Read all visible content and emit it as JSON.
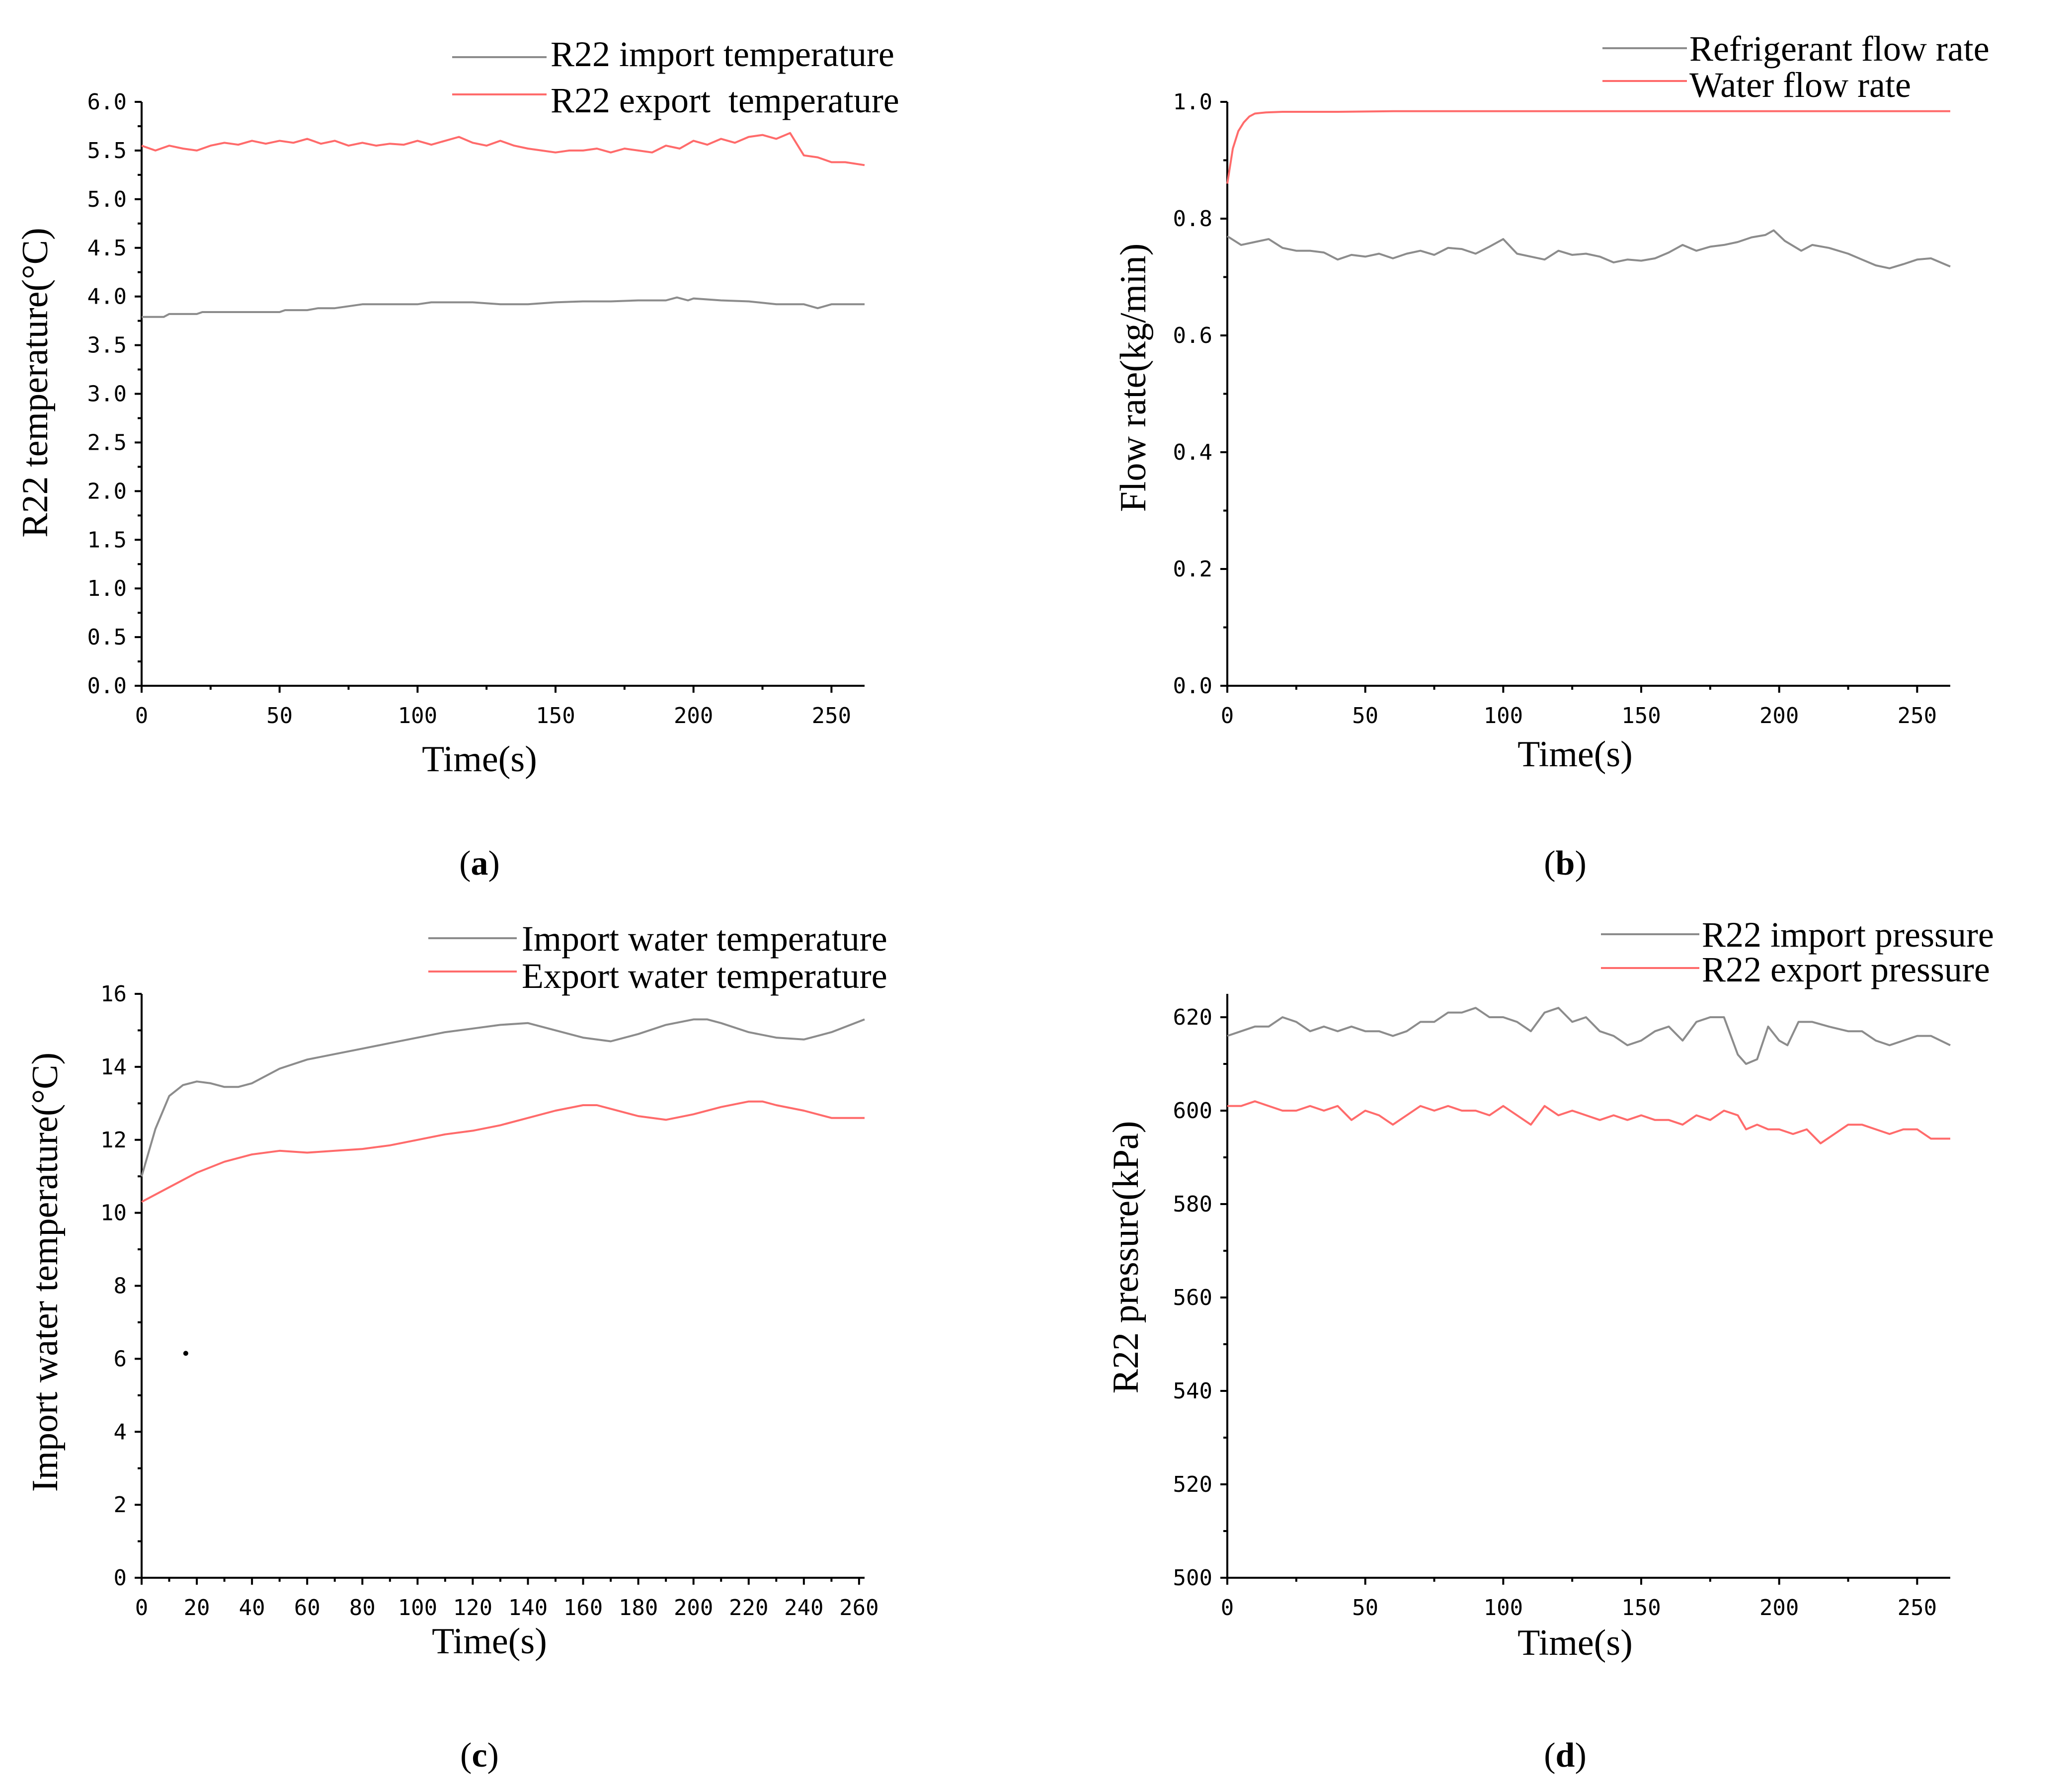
{
  "chart_data": [
    {
      "panel": "a",
      "type": "line",
      "caption": {
        "open": "(",
        "letter": "a",
        "close": ")"
      },
      "xlabel": "Time(s)",
      "ylabel": "R22 temperature(°C)",
      "xlim": [
        0,
        262
      ],
      "ylim": [
        0,
        6
      ],
      "xticks": [
        0,
        50,
        100,
        150,
        200,
        250
      ],
      "xtick_labels": [
        "0",
        "50",
        "100",
        "150",
        "200",
        "250"
      ],
      "yticks": [
        0,
        0.5,
        1,
        1.5,
        2,
        2.5,
        3,
        3.5,
        4,
        4.5,
        5,
        5.5,
        6
      ],
      "ytick_labels": [
        "0.0",
        "0.5",
        "1.0",
        "1.5",
        "2.0",
        "2.5",
        "3.0",
        "3.5",
        "4.0",
        "4.5",
        "5.0",
        "5.5",
        "6.0"
      ],
      "legend_position": "top-right",
      "series": [
        {
          "name": "R22 import temperature",
          "color": "#8c8c8c",
          "x": [
            0,
            8,
            10,
            20,
            22,
            30,
            40,
            50,
            52,
            60,
            64,
            70,
            80,
            90,
            100,
            105,
            110,
            120,
            130,
            140,
            150,
            160,
            170,
            180,
            190,
            194,
            198,
            200,
            210,
            220,
            230,
            240,
            245,
            250,
            262
          ],
          "y": [
            3.79,
            3.79,
            3.82,
            3.82,
            3.84,
            3.84,
            3.84,
            3.84,
            3.86,
            3.86,
            3.88,
            3.88,
            3.92,
            3.92,
            3.92,
            3.94,
            3.94,
            3.94,
            3.92,
            3.92,
            3.94,
            3.95,
            3.95,
            3.96,
            3.96,
            3.99,
            3.96,
            3.98,
            3.96,
            3.95,
            3.92,
            3.92,
            3.88,
            3.92,
            3.92
          ]
        },
        {
          "name": "R22 export  temperature",
          "color": "#ff6b6b",
          "x": [
            0,
            5,
            10,
            15,
            20,
            25,
            30,
            35,
            40,
            45,
            50,
            55,
            60,
            65,
            70,
            75,
            80,
            85,
            90,
            95,
            100,
            105,
            110,
            115,
            120,
            125,
            130,
            135,
            140,
            145,
            150,
            155,
            160,
            165,
            170,
            175,
            180,
            185,
            190,
            195,
            200,
            205,
            210,
            215,
            220,
            225,
            230,
            235,
            240,
            245,
            250,
            255,
            262
          ],
          "y": [
            5.55,
            5.5,
            5.55,
            5.52,
            5.5,
            5.55,
            5.58,
            5.56,
            5.6,
            5.57,
            5.6,
            5.58,
            5.62,
            5.57,
            5.6,
            5.55,
            5.58,
            5.55,
            5.57,
            5.56,
            5.6,
            5.56,
            5.6,
            5.64,
            5.58,
            5.55,
            5.6,
            5.55,
            5.52,
            5.5,
            5.48,
            5.5,
            5.5,
            5.52,
            5.48,
            5.52,
            5.5,
            5.48,
            5.55,
            5.52,
            5.6,
            5.56,
            5.62,
            5.58,
            5.64,
            5.66,
            5.62,
            5.68,
            5.45,
            5.43,
            5.38,
            5.38,
            5.35
          ]
        }
      ]
    },
    {
      "panel": "b",
      "type": "line",
      "caption": {
        "open": "(",
        "letter": "b",
        "close": ")"
      },
      "xlabel": "Time(s)",
      "ylabel": "Flow rate(kg/min)",
      "xlim": [
        0,
        262
      ],
      "ylim": [
        0,
        1
      ],
      "xticks": [
        0,
        50,
        100,
        150,
        200,
        250
      ],
      "xtick_labels": [
        "0",
        "50",
        "100",
        "150",
        "200",
        "250"
      ],
      "yticks": [
        0,
        0.2,
        0.4,
        0.6,
        0.8,
        1.0
      ],
      "ytick_labels": [
        "0.0",
        "0.2",
        "0.4",
        "0.6",
        "0.8",
        "1.0"
      ],
      "legend_position": "top-right",
      "series": [
        {
          "name": "Refrigerant flow rate",
          "color": "#8c8c8c",
          "x": [
            0,
            5,
            10,
            15,
            20,
            25,
            30,
            35,
            40,
            45,
            50,
            55,
            60,
            65,
            70,
            75,
            80,
            85,
            90,
            95,
            100,
            105,
            110,
            115,
            120,
            125,
            130,
            135,
            140,
            145,
            150,
            155,
            160,
            165,
            170,
            175,
            180,
            185,
            190,
            195,
            198,
            202,
            208,
            212,
            218,
            225,
            230,
            235,
            240,
            245,
            250,
            255,
            262
          ],
          "y": [
            0.77,
            0.755,
            0.76,
            0.765,
            0.75,
            0.745,
            0.745,
            0.742,
            0.73,
            0.738,
            0.735,
            0.74,
            0.732,
            0.74,
            0.745,
            0.738,
            0.75,
            0.748,
            0.74,
            0.752,
            0.765,
            0.74,
            0.735,
            0.73,
            0.745,
            0.738,
            0.74,
            0.735,
            0.725,
            0.73,
            0.728,
            0.732,
            0.742,
            0.755,
            0.745,
            0.752,
            0.755,
            0.76,
            0.768,
            0.772,
            0.78,
            0.762,
            0.745,
            0.755,
            0.75,
            0.74,
            0.73,
            0.72,
            0.715,
            0.722,
            0.73,
            0.732,
            0.718
          ]
        },
        {
          "name": "Water flow rate",
          "color": "#ff6b6b",
          "x": [
            0,
            2,
            4,
            6,
            8,
            10,
            14,
            20,
            40,
            60,
            80,
            100,
            120,
            140,
            160,
            180,
            200,
            220,
            240,
            262
          ],
          "y": [
            0.86,
            0.92,
            0.95,
            0.965,
            0.975,
            0.98,
            0.982,
            0.983,
            0.983,
            0.984,
            0.984,
            0.984,
            0.984,
            0.984,
            0.984,
            0.984,
            0.984,
            0.984,
            0.984,
            0.984
          ]
        }
      ]
    },
    {
      "panel": "c",
      "type": "line",
      "caption": {
        "open": "(",
        "letter": "c",
        "close": ")"
      },
      "xlabel": "Time(s)",
      "ylabel": "Import water temperature(°C)",
      "xlim": [
        0,
        262
      ],
      "ylim": [
        0,
        16
      ],
      "xticks": [
        0,
        20,
        40,
        60,
        80,
        100,
        120,
        140,
        160,
        180,
        200,
        220,
        240,
        260
      ],
      "xtick_labels": [
        "0",
        "20",
        "40",
        "60",
        "80",
        "100",
        "120",
        "140",
        "160",
        "180",
        "200",
        "220",
        "240",
        "260"
      ],
      "yticks": [
        0,
        2,
        4,
        6,
        8,
        10,
        12,
        14,
        16
      ],
      "ytick_labels": [
        "0",
        "2",
        "4",
        "6",
        "8",
        "10",
        "12",
        "14",
        "16"
      ],
      "legend_position": "top-right",
      "series": [
        {
          "name": "Import water temperature",
          "color": "#8c8c8c",
          "x": [
            0,
            5,
            10,
            15,
            20,
            25,
            30,
            35,
            40,
            50,
            60,
            70,
            80,
            90,
            100,
            110,
            120,
            130,
            140,
            150,
            160,
            170,
            180,
            190,
            200,
            205,
            210,
            220,
            230,
            240,
            250,
            262
          ],
          "y": [
            11.0,
            12.3,
            13.2,
            13.5,
            13.6,
            13.55,
            13.45,
            13.45,
            13.55,
            13.95,
            14.2,
            14.35,
            14.5,
            14.65,
            14.8,
            14.95,
            15.05,
            15.15,
            15.2,
            15.0,
            14.8,
            14.7,
            14.9,
            15.15,
            15.3,
            15.3,
            15.2,
            14.95,
            14.8,
            14.75,
            14.95,
            15.3
          ]
        },
        {
          "name": "Export water temperature",
          "color": "#ff6b6b",
          "x": [
            0,
            10,
            20,
            30,
            40,
            50,
            60,
            70,
            80,
            90,
            100,
            110,
            120,
            130,
            140,
            150,
            160,
            165,
            170,
            180,
            190,
            200,
            210,
            220,
            225,
            230,
            240,
            250,
            262
          ],
          "y": [
            10.3,
            10.7,
            11.1,
            11.4,
            11.6,
            11.7,
            11.65,
            11.7,
            11.75,
            11.85,
            12.0,
            12.15,
            12.25,
            12.4,
            12.6,
            12.8,
            12.95,
            12.95,
            12.85,
            12.65,
            12.55,
            12.7,
            12.9,
            13.05,
            13.05,
            12.95,
            12.8,
            12.6,
            12.6
          ]
        },
        {
          "name": "",
          "color": "#000000",
          "marker_only": true,
          "x": [
            16
          ],
          "y": [
            6.15
          ]
        }
      ]
    },
    {
      "panel": "d",
      "type": "line",
      "caption": {
        "open": "(",
        "letter": "d",
        "close": ")"
      },
      "xlabel": "Time(s)",
      "ylabel": "R22 pressure(kPa)",
      "xlim": [
        0,
        262
      ],
      "ylim": [
        500,
        625
      ],
      "xticks": [
        0,
        50,
        100,
        150,
        200,
        250
      ],
      "xtick_labels": [
        "0",
        "50",
        "100",
        "150",
        "200",
        "250"
      ],
      "yticks": [
        500,
        520,
        540,
        560,
        580,
        600,
        620
      ],
      "ytick_labels": [
        "500",
        "520",
        "540",
        "560",
        "580",
        "600",
        "620"
      ],
      "legend_position": "top-right",
      "series": [
        {
          "name": "R22 import pressure",
          "color": "#8c8c8c",
          "x": [
            0,
            5,
            10,
            15,
            20,
            25,
            30,
            35,
            40,
            45,
            50,
            55,
            60,
            65,
            70,
            75,
            80,
            85,
            90,
            95,
            100,
            105,
            110,
            115,
            120,
            125,
            130,
            135,
            140,
            145,
            150,
            155,
            160,
            165,
            170,
            175,
            180,
            185,
            188,
            192,
            196,
            200,
            203,
            207,
            212,
            218,
            225,
            230,
            235,
            240,
            245,
            250,
            255,
            262
          ],
          "y": [
            616,
            617,
            618,
            618,
            620,
            619,
            617,
            618,
            617,
            618,
            617,
            617,
            616,
            617,
            619,
            619,
            621,
            621,
            622,
            620,
            620,
            619,
            617,
            621,
            622,
            619,
            620,
            617,
            616,
            614,
            615,
            617,
            618,
            615,
            619,
            620,
            620,
            612,
            610,
            611,
            618,
            615,
            614,
            619,
            619,
            618,
            617,
            617,
            615,
            614,
            615,
            616,
            616,
            614
          ]
        },
        {
          "name": "R22 export pressure",
          "color": "#ff6b6b",
          "x": [
            0,
            5,
            10,
            15,
            20,
            25,
            30,
            35,
            40,
            45,
            50,
            55,
            60,
            65,
            70,
            75,
            80,
            85,
            90,
            95,
            100,
            105,
            110,
            115,
            120,
            125,
            130,
            135,
            140,
            145,
            150,
            155,
            160,
            165,
            170,
            175,
            180,
            185,
            188,
            192,
            196,
            200,
            205,
            210,
            215,
            220,
            225,
            230,
            235,
            240,
            245,
            250,
            255,
            262
          ],
          "y": [
            601,
            601,
            602,
            601,
            600,
            600,
            601,
            600,
            601,
            598,
            600,
            599,
            597,
            599,
            601,
            600,
            601,
            600,
            600,
            599,
            601,
            599,
            597,
            601,
            599,
            600,
            599,
            598,
            599,
            598,
            599,
            598,
            598,
            597,
            599,
            598,
            600,
            599,
            596,
            597,
            596,
            596,
            595,
            596,
            593,
            595,
            597,
            597,
            596,
            595,
            596,
            596,
            594,
            594
          ]
        }
      ]
    }
  ]
}
